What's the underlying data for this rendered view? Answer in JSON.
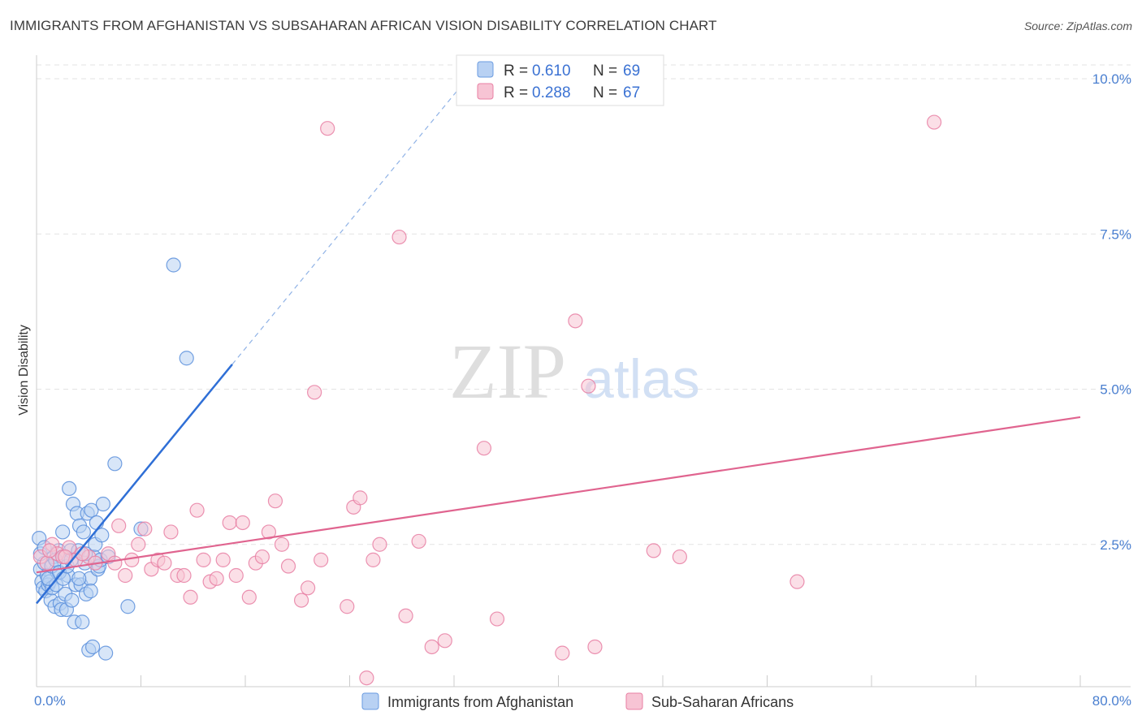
{
  "header": {
    "title": "IMMIGRANTS FROM AFGHANISTAN VS SUBSAHARAN AFRICAN VISION DISABILITY CORRELATION CHART",
    "source": "Source: ZipAtlas.com"
  },
  "watermark": {
    "zip": "ZIP",
    "atlas": "atlas"
  },
  "legend": {
    "r_label": "R =",
    "n_label": "N =",
    "rows": [
      {
        "r": "0.610",
        "n": "69",
        "color": "#6a9be0",
        "fill": "#b8d1f3"
      },
      {
        "r": "0.288",
        "n": "67",
        "color": "#e87fa3",
        "fill": "#f7c4d4"
      }
    ]
  },
  "chart_data": {
    "type": "scatter",
    "title": "IMMIGRANTS FROM AFGHANISTAN VS SUBSAHARAN AFRICAN VISION DISABILITY CORRELATION CHART",
    "xlabel": "",
    "ylabel": "Vision Disability",
    "xlim": [
      0,
      80
    ],
    "ylim": [
      0,
      10.5
    ],
    "x_tick_labels": [
      "0.0%",
      "80.0%"
    ],
    "y_ticks": [
      2.5,
      5.0,
      7.5,
      10.0
    ],
    "y_tick_labels": [
      "2.5%",
      "5.0%",
      "7.5%",
      "10.0%"
    ],
    "grid": true,
    "series": [
      {
        "name": "Immigrants from Afghanistan",
        "color": "#5b8fdc",
        "fill": "#b8d1f3",
        "trend": {
          "x0": 0,
          "y0": 1.55,
          "x1": 15,
          "y1": 5.4,
          "dash_to_x": 33,
          "dash_to_y": 10.0
        },
        "points": [
          [
            0.2,
            2.6
          ],
          [
            0.3,
            2.1
          ],
          [
            0.4,
            1.9
          ],
          [
            0.5,
            1.8
          ],
          [
            0.6,
            2.2
          ],
          [
            0.7,
            1.75
          ],
          [
            0.8,
            2.0
          ],
          [
            0.9,
            1.85
          ],
          [
            1.0,
            1.9
          ],
          [
            1.1,
            1.6
          ],
          [
            1.2,
            1.8
          ],
          [
            1.3,
            2.3
          ],
          [
            1.4,
            1.5
          ],
          [
            1.5,
            1.85
          ],
          [
            1.6,
            2.05
          ],
          [
            1.7,
            2.4
          ],
          [
            1.8,
            1.55
          ],
          [
            1.9,
            1.45
          ],
          [
            2.0,
            2.7
          ],
          [
            2.1,
            2.3
          ],
          [
            2.2,
            1.7
          ],
          [
            2.3,
            1.45
          ],
          [
            2.4,
            2.0
          ],
          [
            2.5,
            3.4
          ],
          [
            2.6,
            2.4
          ],
          [
            2.7,
            1.6
          ],
          [
            2.8,
            3.15
          ],
          [
            2.9,
            1.25
          ],
          [
            3.0,
            1.85
          ],
          [
            3.1,
            3.0
          ],
          [
            3.2,
            2.4
          ],
          [
            3.3,
            2.8
          ],
          [
            3.4,
            1.85
          ],
          [
            3.5,
            1.25
          ],
          [
            3.6,
            2.7
          ],
          [
            3.7,
            2.2
          ],
          [
            3.8,
            1.7
          ],
          [
            3.9,
            3.0
          ],
          [
            4.0,
            0.8
          ],
          [
            4.1,
            1.95
          ],
          [
            4.2,
            3.05
          ],
          [
            4.3,
            0.85
          ],
          [
            4.4,
            2.3
          ],
          [
            4.5,
            2.5
          ],
          [
            4.6,
            2.85
          ],
          [
            4.7,
            2.1
          ],
          [
            4.8,
            2.15
          ],
          [
            4.9,
            2.25
          ],
          [
            5.0,
            2.65
          ],
          [
            5.1,
            3.15
          ],
          [
            5.3,
            0.75
          ],
          [
            5.5,
            2.3
          ],
          [
            6.0,
            3.8
          ],
          [
            7.0,
            1.5
          ],
          [
            8.0,
            2.75
          ],
          [
            10.5,
            7.0
          ],
          [
            11.5,
            5.5
          ],
          [
            0.3,
            2.35
          ],
          [
            0.6,
            2.45
          ],
          [
            0.9,
            1.95
          ],
          [
            1.15,
            2.15
          ],
          [
            1.45,
            2.25
          ],
          [
            1.75,
            2.05
          ],
          [
            2.05,
            1.95
          ],
          [
            2.35,
            2.15
          ],
          [
            2.65,
            2.25
          ],
          [
            3.25,
            1.95
          ],
          [
            3.75,
            2.35
          ],
          [
            4.15,
            1.75
          ]
        ]
      },
      {
        "name": "Sub-Saharan Africans",
        "color": "#e87fa3",
        "fill": "#f7c4d4",
        "trend": {
          "x0": 0,
          "y0": 2.05,
          "x1": 80,
          "y1": 4.55
        },
        "points": [
          [
            0.3,
            2.3
          ],
          [
            0.8,
            2.2
          ],
          [
            1.2,
            2.5
          ],
          [
            1.6,
            2.35
          ],
          [
            2.0,
            2.3
          ],
          [
            2.5,
            2.45
          ],
          [
            3.0,
            2.25
          ],
          [
            4.0,
            2.3
          ],
          [
            4.5,
            2.2
          ],
          [
            5.5,
            2.35
          ],
          [
            6.0,
            2.2
          ],
          [
            6.3,
            2.8
          ],
          [
            6.8,
            2.0
          ],
          [
            7.3,
            2.25
          ],
          [
            7.8,
            2.5
          ],
          [
            8.3,
            2.75
          ],
          [
            8.8,
            2.1
          ],
          [
            9.3,
            2.25
          ],
          [
            9.8,
            2.2
          ],
          [
            10.3,
            2.7
          ],
          [
            10.8,
            2.0
          ],
          [
            11.3,
            2.0
          ],
          [
            11.8,
            1.65
          ],
          [
            12.3,
            3.05
          ],
          [
            12.8,
            2.25
          ],
          [
            13.3,
            1.9
          ],
          [
            13.8,
            1.95
          ],
          [
            14.3,
            2.25
          ],
          [
            14.8,
            2.85
          ],
          [
            15.3,
            2.0
          ],
          [
            15.8,
            2.85
          ],
          [
            16.3,
            1.65
          ],
          [
            16.8,
            2.2
          ],
          [
            17.3,
            2.3
          ],
          [
            17.8,
            2.7
          ],
          [
            18.3,
            3.2
          ],
          [
            18.8,
            2.5
          ],
          [
            19.3,
            2.15
          ],
          [
            20.3,
            1.6
          ],
          [
            20.8,
            1.8
          ],
          [
            21.8,
            2.25
          ],
          [
            22.3,
            9.2
          ],
          [
            23.8,
            1.5
          ],
          [
            24.3,
            3.1
          ],
          [
            24.8,
            3.25
          ],
          [
            25.3,
            0.35
          ],
          [
            25.8,
            2.25
          ],
          [
            26.3,
            2.5
          ],
          [
            27.8,
            7.45
          ],
          [
            28.3,
            1.35
          ],
          [
            29.3,
            2.55
          ],
          [
            30.3,
            0.85
          ],
          [
            31.3,
            0.95
          ],
          [
            34.3,
            4.05
          ],
          [
            35.3,
            1.3
          ],
          [
            40.3,
            0.75
          ],
          [
            41.3,
            6.1
          ],
          [
            42.3,
            5.05
          ],
          [
            42.8,
            0.85
          ],
          [
            21.3,
            4.95
          ],
          [
            47.3,
            2.4
          ],
          [
            49.3,
            2.3
          ],
          [
            58.3,
            1.9
          ],
          [
            68.8,
            9.3
          ],
          [
            1.0,
            2.4
          ],
          [
            2.2,
            2.3
          ],
          [
            3.5,
            2.35
          ]
        ]
      }
    ]
  },
  "bottom_legend": [
    {
      "label": "Immigrants from Afghanistan",
      "fill": "#b8d1f3",
      "stroke": "#6a9be0"
    },
    {
      "label": "Sub-Saharan Africans",
      "fill": "#f7c4d4",
      "stroke": "#e87fa3"
    }
  ]
}
